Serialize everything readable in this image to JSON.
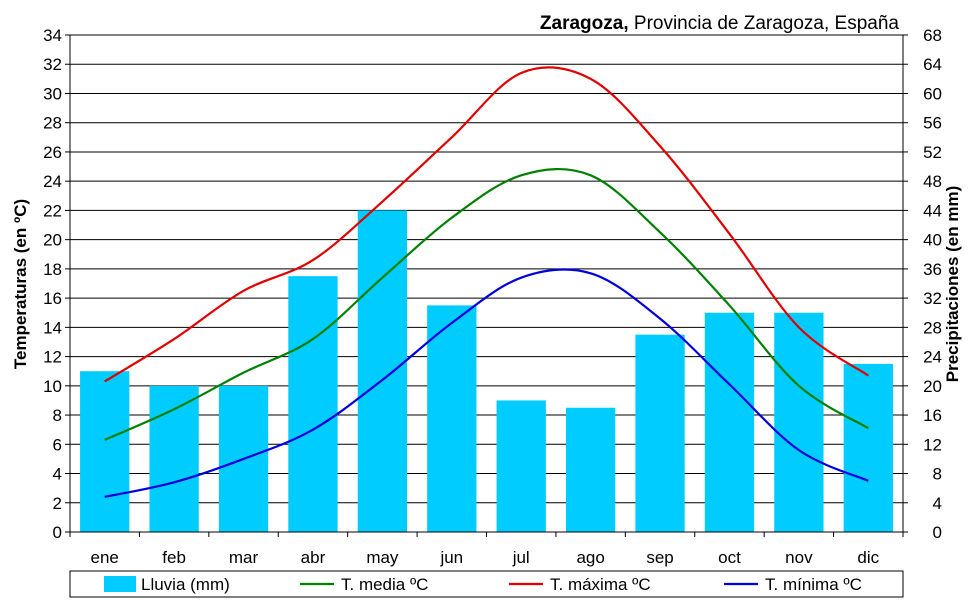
{
  "chart_data": {
    "type": "bar+line",
    "title_bold": "Zaragoza,",
    "title_rest": "Provincia de Zaragoza, España",
    "categories": [
      "ene",
      "feb",
      "mar",
      "abr",
      "may",
      "jun",
      "jul",
      "ago",
      "sep",
      "oct",
      "nov",
      "dic"
    ],
    "left_axis": {
      "label": "Temperaturas (en ºC)",
      "ylim": [
        0,
        34
      ],
      "ticks": [
        0,
        2,
        4,
        6,
        8,
        10,
        12,
        14,
        16,
        18,
        20,
        22,
        24,
        26,
        28,
        30,
        32,
        34
      ]
    },
    "right_axis": {
      "label": "Precipitaciones (en mm)",
      "ylim": [
        0,
        68
      ],
      "ticks": [
        0,
        4,
        8,
        12,
        16,
        20,
        24,
        28,
        32,
        36,
        40,
        44,
        48,
        52,
        56,
        60,
        64,
        68
      ]
    },
    "grid": true,
    "legend_position": "bottom",
    "bar_series": {
      "name": "Lluvia (mm)",
      "color": "#00CCFF",
      "axis": "right",
      "values": [
        22,
        20,
        20,
        35,
        44,
        31,
        18,
        17,
        27,
        30,
        30,
        23
      ]
    },
    "line_series": [
      {
        "name": "T. media ºC",
        "color": "#008000",
        "axis": "left",
        "values": [
          6.3,
          8.4,
          10.9,
          13.2,
          17.4,
          21.5,
          24.4,
          24.4,
          20.5,
          15.5,
          10.0,
          7.1
        ]
      },
      {
        "name": "T. máxima ºC",
        "color": "#E00000",
        "axis": "left",
        "values": [
          10.3,
          13.2,
          16.5,
          18.6,
          22.6,
          27.0,
          31.4,
          31.0,
          26.4,
          20.4,
          14.0,
          10.7
        ]
      },
      {
        "name": "T. mínima ºC",
        "color": "#0000DD",
        "axis": "left",
        "values": [
          2.4,
          3.4,
          5.0,
          7.0,
          10.4,
          14.3,
          17.4,
          17.7,
          14.6,
          10.1,
          5.6,
          3.5
        ]
      }
    ],
    "legend": [
      "Lluvia (mm)",
      "T. media ºC",
      "T. máxima ºC",
      "T. mínima ºC"
    ]
  }
}
